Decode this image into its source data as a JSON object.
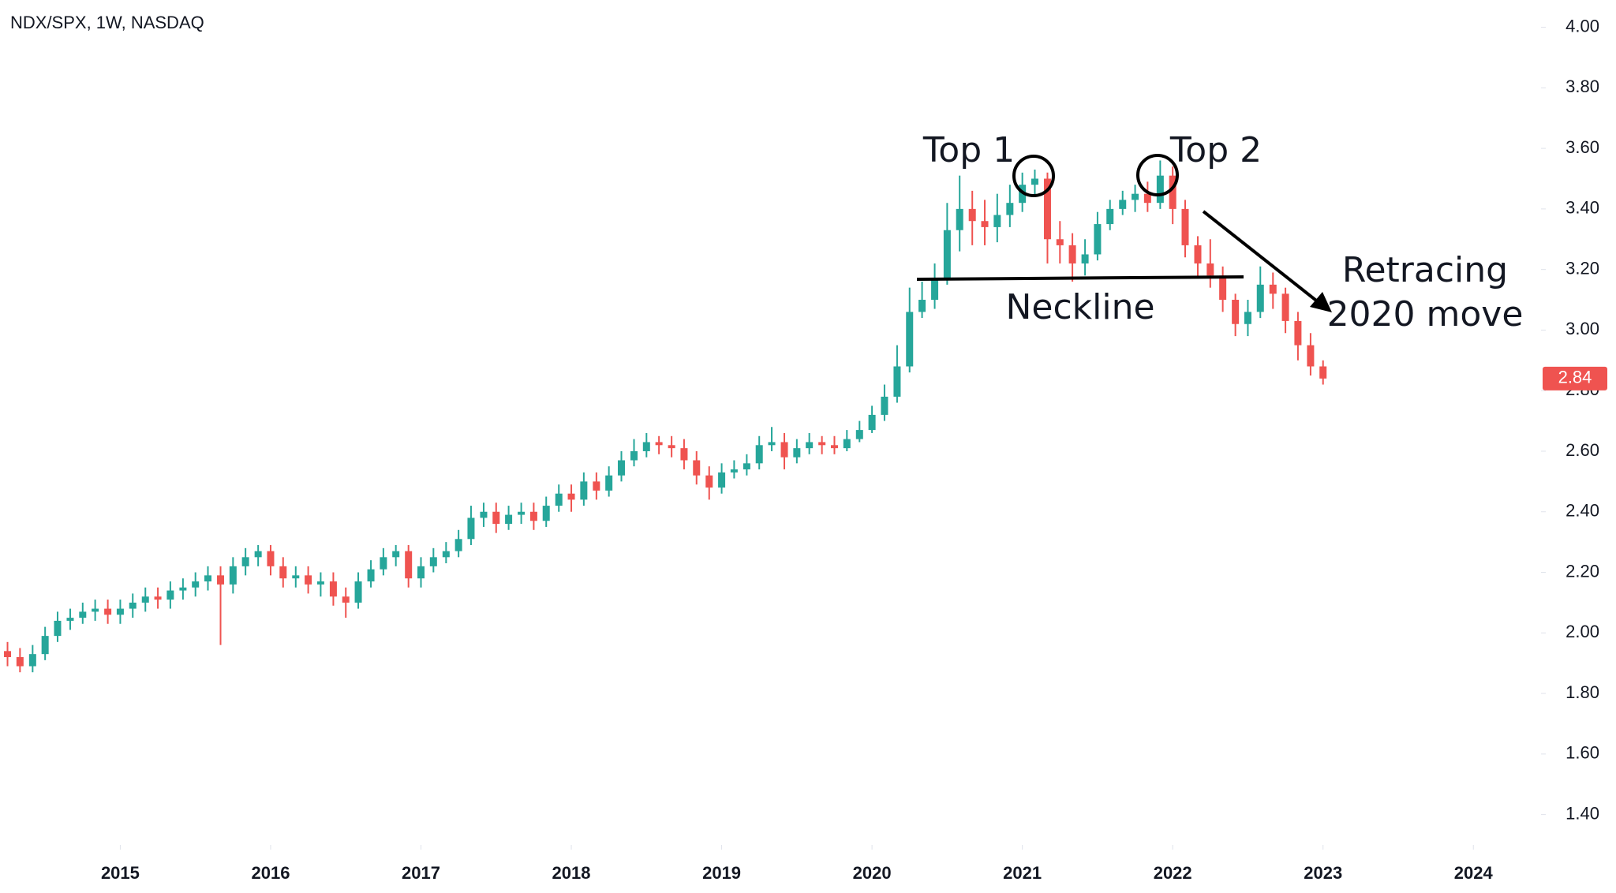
{
  "chart_data": {
    "type": "candlestick",
    "title": "NDX/SPX, 1W, NASDAQ",
    "x": [
      2014.25,
      2014.333,
      2014.417,
      2014.5,
      2014.583,
      2014.667,
      2014.75,
      2014.833,
      2014.917,
      2015,
      2015.083,
      2015.167,
      2015.25,
      2015.333,
      2015.417,
      2015.5,
      2015.583,
      2015.667,
      2015.75,
      2015.833,
      2015.917,
      2016,
      2016.083,
      2016.167,
      2016.25,
      2016.333,
      2016.417,
      2016.5,
      2016.583,
      2016.667,
      2016.75,
      2016.833,
      2016.917,
      2017,
      2017.083,
      2017.167,
      2017.25,
      2017.333,
      2017.417,
      2017.5,
      2017.583,
      2017.667,
      2017.75,
      2017.833,
      2017.917,
      2018,
      2018.083,
      2018.167,
      2018.25,
      2018.333,
      2018.417,
      2018.5,
      2018.583,
      2018.667,
      2018.75,
      2018.833,
      2018.917,
      2019,
      2019.083,
      2019.167,
      2019.25,
      2019.333,
      2019.417,
      2019.5,
      2019.583,
      2019.667,
      2019.75,
      2019.833,
      2019.917,
      2020,
      2020.083,
      2020.167,
      2020.25,
      2020.333,
      2020.417,
      2020.5,
      2020.583,
      2020.667,
      2020.75,
      2020.833,
      2020.917,
      2021,
      2021.083,
      2021.167,
      2021.25,
      2021.333,
      2021.417,
      2021.5,
      2021.583,
      2021.667,
      2021.75,
      2021.833,
      2021.917,
      2022,
      2022.083,
      2022.167,
      2022.25,
      2022.333,
      2022.417,
      2022.5,
      2022.583,
      2022.667,
      2022.75,
      2022.833,
      2022.917,
      2023
    ],
    "open": [
      1.94,
      1.92,
      1.89,
      1.93,
      1.99,
      2.04,
      2.05,
      2.07,
      2.08,
      2.06,
      2.08,
      2.1,
      2.12,
      2.11,
      2.14,
      2.15,
      2.17,
      2.19,
      2.16,
      2.22,
      2.25,
      2.27,
      2.22,
      2.18,
      2.19,
      2.16,
      2.17,
      2.12,
      2.1,
      2.17,
      2.21,
      2.25,
      2.27,
      2.18,
      2.22,
      2.25,
      2.27,
      2.31,
      2.38,
      2.4,
      2.36,
      2.39,
      2.4,
      2.37,
      2.42,
      2.46,
      2.44,
      2.5,
      2.47,
      2.52,
      2.57,
      2.6,
      2.63,
      2.62,
      2.61,
      2.57,
      2.52,
      2.48,
      2.53,
      2.54,
      2.56,
      2.62,
      2.63,
      2.58,
      2.61,
      2.63,
      2.62,
      2.61,
      2.64,
      2.67,
      2.72,
      2.78,
      2.88,
      3.06,
      3.1,
      3.17,
      3.33,
      3.4,
      3.36,
      3.34,
      3.38,
      3.42,
      3.48,
      3.5,
      3.3,
      3.28,
      3.22,
      3.25,
      3.35,
      3.4,
      3.43,
      3.45,
      3.42,
      3.51,
      3.4,
      3.28,
      3.22,
      3.18,
      3.1,
      3.02,
      3.06,
      3.15,
      3.12,
      3.03,
      2.95,
      2.88
    ],
    "high": [
      1.97,
      1.95,
      1.96,
      2.02,
      2.07,
      2.08,
      2.1,
      2.11,
      2.11,
      2.11,
      2.13,
      2.15,
      2.15,
      2.17,
      2.18,
      2.2,
      2.22,
      2.22,
      2.25,
      2.28,
      2.29,
      2.29,
      2.25,
      2.22,
      2.22,
      2.2,
      2.2,
      2.15,
      2.2,
      2.24,
      2.28,
      2.29,
      2.29,
      2.25,
      2.28,
      2.3,
      2.34,
      2.42,
      2.43,
      2.43,
      2.42,
      2.43,
      2.43,
      2.45,
      2.49,
      2.49,
      2.53,
      2.53,
      2.55,
      2.6,
      2.64,
      2.66,
      2.65,
      2.65,
      2.64,
      2.6,
      2.55,
      2.56,
      2.57,
      2.59,
      2.65,
      2.68,
      2.66,
      2.64,
      2.66,
      2.65,
      2.65,
      2.67,
      2.7,
      2.75,
      2.82,
      2.95,
      3.14,
      3.16,
      3.22,
      3.42,
      3.51,
      3.46,
      3.43,
      3.45,
      3.48,
      3.52,
      3.53,
      3.52,
      3.36,
      3.32,
      3.3,
      3.39,
      3.43,
      3.46,
      3.48,
      3.49,
      3.56,
      3.54,
      3.43,
      3.31,
      3.3,
      3.21,
      3.12,
      3.1,
      3.21,
      3.19,
      3.14,
      3.06,
      2.99,
      2.9
    ],
    "low": [
      1.89,
      1.87,
      1.87,
      1.91,
      1.97,
      2.01,
      2.03,
      2.04,
      2.03,
      2.03,
      2.05,
      2.07,
      2.08,
      2.08,
      2.11,
      2.12,
      2.14,
      1.96,
      2.13,
      2.19,
      2.22,
      2.19,
      2.15,
      2.15,
      2.13,
      2.12,
      2.09,
      2.05,
      2.08,
      2.15,
      2.19,
      2.22,
      2.15,
      2.15,
      2.2,
      2.23,
      2.25,
      2.29,
      2.35,
      2.33,
      2.34,
      2.36,
      2.34,
      2.35,
      2.4,
      2.4,
      2.42,
      2.44,
      2.45,
      2.5,
      2.55,
      2.58,
      2.59,
      2.58,
      2.54,
      2.49,
      2.44,
      2.46,
      2.51,
      2.52,
      2.54,
      2.6,
      2.54,
      2.56,
      2.59,
      2.59,
      2.59,
      2.6,
      2.63,
      2.66,
      2.7,
      2.76,
      2.86,
      3.04,
      3.07,
      3.15,
      3.26,
      3.28,
      3.28,
      3.29,
      3.34,
      3.39,
      3.44,
      3.22,
      3.22,
      3.16,
      3.18,
      3.23,
      3.33,
      3.38,
      3.39,
      3.39,
      3.4,
      3.35,
      3.24,
      3.17,
      3.14,
      3.06,
      2.98,
      2.98,
      3.04,
      3.07,
      2.99,
      2.9,
      2.85,
      2.82
    ],
    "close": [
      1.92,
      1.89,
      1.93,
      1.99,
      2.04,
      2.05,
      2.07,
      2.08,
      2.06,
      2.08,
      2.1,
      2.12,
      2.11,
      2.14,
      2.15,
      2.17,
      2.19,
      2.16,
      2.22,
      2.25,
      2.27,
      2.22,
      2.18,
      2.19,
      2.16,
      2.17,
      2.12,
      2.1,
      2.17,
      2.21,
      2.25,
      2.27,
      2.18,
      2.22,
      2.25,
      2.27,
      2.31,
      2.38,
      2.4,
      2.36,
      2.39,
      2.4,
      2.37,
      2.42,
      2.46,
      2.44,
      2.5,
      2.47,
      2.52,
      2.57,
      2.6,
      2.63,
      2.62,
      2.61,
      2.57,
      2.52,
      2.48,
      2.53,
      2.54,
      2.56,
      2.62,
      2.63,
      2.58,
      2.61,
      2.63,
      2.62,
      2.61,
      2.64,
      2.67,
      2.72,
      2.78,
      2.88,
      3.06,
      3.1,
      3.17,
      3.33,
      3.4,
      3.36,
      3.34,
      3.38,
      3.42,
      3.48,
      3.5,
      3.3,
      3.28,
      3.22,
      3.25,
      3.35,
      3.4,
      3.43,
      3.45,
      3.42,
      3.51,
      3.4,
      3.28,
      3.22,
      3.18,
      3.1,
      3.02,
      3.06,
      3.15,
      3.12,
      3.03,
      2.95,
      2.88,
      2.84
    ],
    "up_color": "#26a69a",
    "down_color": "#ef5350",
    "last_price": {
      "value": 2.84,
      "label": "2.84"
    },
    "xlim": [
      2014.2,
      2024.45
    ],
    "xticks": [
      2015,
      2016,
      2017,
      2018,
      2019,
      2020,
      2021,
      2022,
      2023,
      2024
    ],
    "ylim": [
      1.3,
      4.09
    ],
    "yticks": [
      {
        "value": 1.4,
        "label": "1.40"
      },
      {
        "value": 1.6,
        "label": "1.60"
      },
      {
        "value": 1.8,
        "label": "1.80"
      },
      {
        "value": 2.0,
        "label": "2.00"
      },
      {
        "value": 2.2,
        "label": "2.20"
      },
      {
        "value": 2.4,
        "label": "2.40"
      },
      {
        "value": 2.6,
        "label": "2.60"
      },
      {
        "value": 2.8,
        "label": "2.80"
      },
      {
        "value": 3.0,
        "label": "3.00"
      },
      {
        "value": 3.2,
        "label": "3.20"
      },
      {
        "value": 3.4,
        "label": "3.40"
      },
      {
        "value": 3.6,
        "label": "3.60"
      },
      {
        "value": 3.8,
        "label": "3.80"
      },
      {
        "value": 4.0,
        "label": "4.00"
      }
    ],
    "grid": false,
    "annotations": {
      "top1": "Top 1",
      "top2": "Top 2",
      "neckline": "Neckline",
      "retrace": [
        "Retracing",
        "2020 move"
      ]
    }
  }
}
